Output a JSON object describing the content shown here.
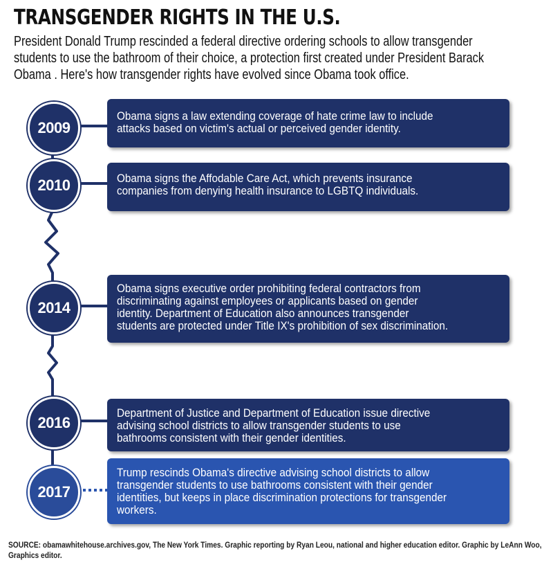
{
  "title": "TRANSGENDER RIGHTS IN THE U.S.",
  "subtitle_lines": [
    "President Donald Trump rescinded a federal directive ordering schools to allow transgender",
    "students to use the bathroom of their choice, a protection first created under President Barack",
    "Obama . Here's how transgender rights have evolved since Obama took office."
  ],
  "events": [
    {
      "year": "2009",
      "lines": [
        "Obama signs a law extending coverage of hate crime law to include",
        "attacks based on victim's actual or perceived gender identity."
      ]
    },
    {
      "year": "2010",
      "lines": [
        "Obama signs the Affodable Care Act, which prevents insurance",
        "companies from denying health insurance to LGBTQ individuals."
      ]
    },
    {
      "year": "2014",
      "lines": [
        "Obama signs executive order prohibiting federal contractors from",
        "discriminating against employees or applicants based on gender",
        "identity. Department of Education also announces transgender",
        "students are protected under Title IX's prohibition of sex discrimination."
      ]
    },
    {
      "year": "2016",
      "lines": [
        "Department of Justice and Department of Education issue directive",
        "advising school districts to allow transgender students to use",
        "bathrooms consistent with their gender identities."
      ]
    },
    {
      "year": "2017",
      "lines": [
        "Trump rescinds Obama's directive advising school districts to allow",
        "transgender students to use bathrooms consistent with their gender",
        "identities, but keeps in place discrimination protections for transgender",
        "workers."
      ]
    }
  ],
  "source_lines": [
    "SOURCE: obamawhitehouse.archives.gov, The New York Times. Graphic reporting by Ryan Leou, national and higher education editor. Graphic by LeAnn Woo,",
    "Graphics editor."
  ],
  "colors": {
    "navy": "#1f3168",
    "current_blue": "#2a55b0"
  }
}
